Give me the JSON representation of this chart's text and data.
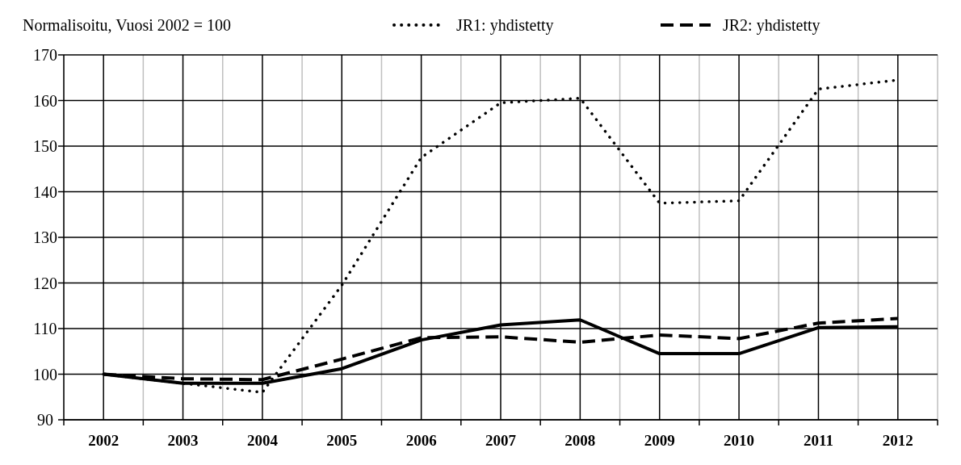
{
  "chart_data": {
    "type": "line",
    "title": "Normalisoitu, Vuosi 2002 = 100",
    "categories": [
      "2002",
      "2003",
      "2004",
      "2005",
      "2006",
      "2007",
      "2008",
      "2009",
      "2010",
      "2011",
      "2012"
    ],
    "series": [
      {
        "name": "JR1: yhdistetty",
        "color": "#000000",
        "line_style": "dotted",
        "values": [
          100,
          98,
          96,
          119.5,
          147.5,
          159.5,
          160.5,
          137.5,
          138,
          162.5,
          164.5
        ]
      },
      {
        "name": "JR2: yhdistetty",
        "color": "#000000",
        "line_style": "dashed",
        "values": [
          100,
          99,
          98.8,
          103.3,
          108,
          108.2,
          107,
          108.6,
          107.8,
          111.2,
          112.2
        ]
      },
      {
        "color": "#000000",
        "line_style": "solid",
        "values": [
          100,
          98,
          98,
          101.2,
          107.5,
          110.8,
          111.9,
          104.5,
          104.5,
          110.2,
          110.4
        ]
      }
    ],
    "ylim": [
      90,
      170
    ],
    "yticks": [
      90,
      100,
      110,
      120,
      130,
      140,
      150,
      160,
      170
    ],
    "grid": true,
    "legend": "top right",
    "marker": "none"
  }
}
